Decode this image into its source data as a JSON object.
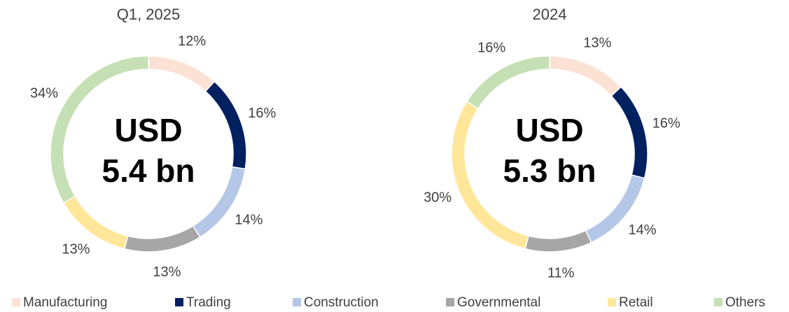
{
  "legend": {
    "labels": [
      "Manufacturing",
      "Trading",
      "Construction",
      "Governmental",
      "Retail",
      "Others"
    ],
    "colors": [
      "#fbe2d5",
      "#002060",
      "#b4c7e7",
      "#a6a6a6",
      "#ffe699",
      "#c5e0b4"
    ]
  },
  "chart_data": [
    {
      "type": "pie",
      "title": "Q1, 2025",
      "center_label": [
        "USD",
        "5.4 bn"
      ],
      "values": [
        12,
        16,
        14,
        13,
        13,
        34
      ],
      "value_labels": [
        "12%",
        "16%",
        "14%",
        "13%",
        "13%",
        "34%"
      ]
    },
    {
      "type": "pie",
      "title": "2024",
      "center_label": [
        "USD",
        "5.3 bn"
      ],
      "values": [
        13,
        16,
        14,
        11,
        30,
        16
      ],
      "value_labels": [
        "13%",
        "16%",
        "14%",
        "11%",
        "30%",
        "16%"
      ]
    }
  ]
}
